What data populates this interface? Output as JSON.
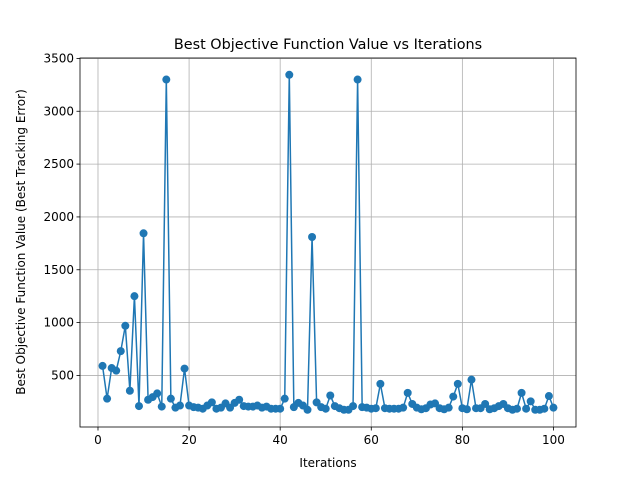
{
  "chart_data": {
    "type": "line",
    "title": "Best Objective Function Value vs Iterations",
    "xlabel": "Iterations",
    "ylabel": "Best Objective Function Value (Best Tracking Error)",
    "x": [
      1,
      2,
      3,
      4,
      5,
      6,
      7,
      8,
      9,
      10,
      11,
      12,
      13,
      14,
      15,
      16,
      17,
      18,
      19,
      20,
      21,
      22,
      23,
      24,
      25,
      26,
      27,
      28,
      29,
      30,
      31,
      32,
      33,
      34,
      35,
      36,
      37,
      38,
      39,
      40,
      41,
      42,
      43,
      44,
      45,
      46,
      47,
      48,
      49,
      50,
      51,
      52,
      53,
      54,
      55,
      56,
      57,
      58,
      59,
      60,
      61,
      62,
      63,
      64,
      65,
      66,
      67,
      68,
      69,
      70,
      71,
      72,
      73,
      74,
      75,
      76,
      77,
      78,
      79,
      80,
      81,
      82,
      83,
      84,
      85,
      86,
      87,
      88,
      89,
      90,
      91,
      92,
      93,
      94,
      95,
      96,
      97,
      98,
      99,
      100
    ],
    "series": [
      {
        "name": "Best Objective",
        "color": "#1f77b4",
        "values": [
          590,
          280,
          570,
          545,
          730,
          970,
          355,
          1250,
          210,
          1845,
          270,
          295,
          330,
          205,
          3300,
          280,
          195,
          215,
          565,
          215,
          200,
          195,
          185,
          215,
          245,
          185,
          195,
          235,
          195,
          240,
          270,
          210,
          205,
          205,
          215,
          195,
          205,
          185,
          185,
          185,
          280,
          3345,
          200,
          240,
          215,
          175,
          1810,
          245,
          200,
          185,
          310,
          210,
          190,
          175,
          175,
          210,
          3300,
          200,
          195,
          185,
          190,
          420,
          190,
          185,
          185,
          185,
          195,
          335,
          230,
          195,
          180,
          190,
          225,
          235,
          190,
          180,
          195,
          300,
          420,
          190,
          180,
          460,
          190,
          190,
          230,
          180,
          190,
          210,
          230,
          190,
          175,
          185,
          335,
          185,
          255,
          175,
          175,
          185,
          305,
          195
        ]
      }
    ],
    "xlim": [
      -3.95,
      104.95
    ],
    "ylim": [
      12,
      3504
    ],
    "xticks": [
      0,
      20,
      40,
      60,
      80,
      100
    ],
    "yticks": [
      500,
      1000,
      1500,
      2000,
      2500,
      3000,
      3500
    ],
    "grid": true
  }
}
